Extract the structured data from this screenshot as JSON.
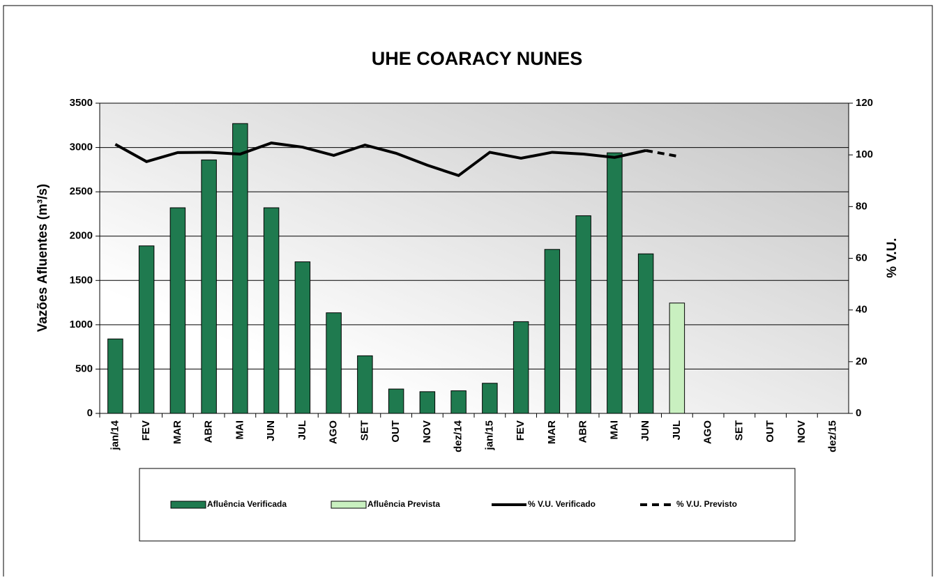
{
  "chart_data": {
    "type": "bar",
    "title": "UHE COARACY NUNES",
    "y_label": "Vazões Afluentes (m³/s)",
    "y2_label": "% V.U.",
    "categories": [
      "jan/14",
      "FEV",
      "MAR",
      "ABR",
      "MAI",
      "JUN",
      "JUL",
      "AGO",
      "SET",
      "OUT",
      "NOV",
      "dez/14",
      "jan/15",
      "FEV",
      "MAR",
      "ABR",
      "MAI",
      "JUN",
      "JUL",
      "AGO",
      "SET",
      "OUT",
      "NOV",
      "dez/15"
    ],
    "series": [
      {
        "name": "Afluência Verificada",
        "type": "bar",
        "color": "#1f7a4f",
        "values": [
          840,
          1890,
          2320,
          2860,
          3270,
          2320,
          1710,
          1135,
          650,
          275,
          245,
          255,
          340,
          1035,
          1850,
          2230,
          2940,
          1800,
          null,
          null,
          null,
          null,
          null,
          null
        ]
      },
      {
        "name": "Afluência Prevista",
        "type": "bar",
        "color": "#c9f0c0",
        "values": [
          null,
          null,
          null,
          null,
          null,
          null,
          null,
          null,
          null,
          null,
          null,
          null,
          null,
          null,
          null,
          null,
          null,
          null,
          1245,
          null,
          null,
          null,
          null,
          null
        ]
      },
      {
        "name": "% V.U. Verificado",
        "type": "line",
        "color": "#000000",
        "axis": "y2",
        "values": [
          104.1,
          97.4,
          100.9,
          101,
          100.3,
          104.6,
          103,
          99.8,
          103.8,
          100.6,
          96,
          92,
          101,
          98.7,
          101,
          100.3,
          99,
          101.7,
          null,
          null,
          null,
          null,
          null,
          null
        ]
      },
      {
        "name": "% V.U. Previsto",
        "type": "line",
        "color": "#000000",
        "axis": "y2",
        "dashed": true,
        "values": [
          null,
          null,
          null,
          null,
          null,
          null,
          null,
          null,
          null,
          null,
          null,
          null,
          null,
          null,
          null,
          null,
          null,
          101.7,
          99.5,
          null,
          null,
          null,
          null,
          null
        ]
      }
    ],
    "ylim": [
      0,
      3500
    ],
    "yticks": [
      0,
      500,
      1000,
      1500,
      2000,
      2500,
      3000,
      3500
    ],
    "y2lim": [
      0,
      120
    ],
    "y2ticks": [
      0,
      20,
      40,
      60,
      80,
      100,
      120
    ],
    "grid": true,
    "legend": "bottom"
  }
}
